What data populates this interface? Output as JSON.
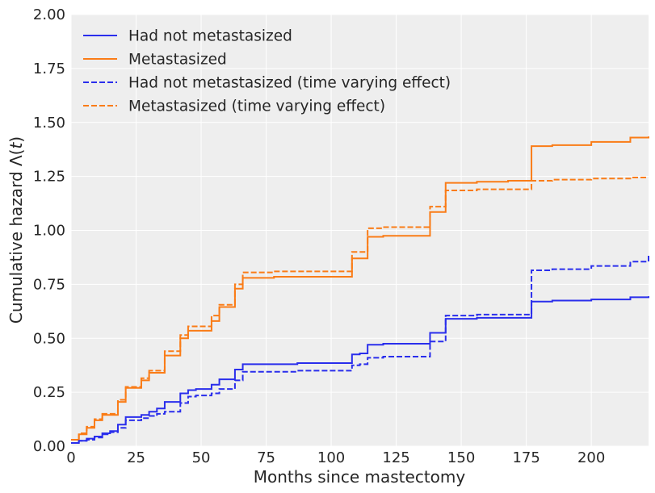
{
  "chart_data": {
    "type": "line",
    "title": "",
    "xlabel": "Months since mastectomy",
    "ylabel_main": "Cumulative hazard Λ(",
    "ylabel_var": "t",
    "ylabel_close": ")",
    "xlim": [
      0,
      222
    ],
    "ylim": [
      0,
      2.0
    ],
    "xticks": [
      0,
      25,
      50,
      75,
      100,
      125,
      150,
      175,
      200
    ],
    "xtick_labels": [
      "0",
      "25",
      "50",
      "75",
      "100",
      "125",
      "150",
      "175",
      "200"
    ],
    "yticks": [
      0,
      0.25,
      0.5,
      0.75,
      1.0,
      1.25,
      1.5,
      1.75,
      2.0
    ],
    "ytick_labels": [
      "0.00",
      "0.25",
      "0.50",
      "0.75",
      "1.00",
      "1.25",
      "1.50",
      "1.75",
      "2.00"
    ],
    "grid": true,
    "legend_position": "top-left",
    "series": [
      {
        "name": "Had not metastasized",
        "color": "#2a2eec",
        "dash": "solid",
        "points": [
          [
            0,
            0.015
          ],
          [
            3,
            0.025
          ],
          [
            6,
            0.035
          ],
          [
            9,
            0.045
          ],
          [
            12,
            0.06
          ],
          [
            15,
            0.07
          ],
          [
            18,
            0.1
          ],
          [
            21,
            0.135
          ],
          [
            27,
            0.145
          ],
          [
            30,
            0.16
          ],
          [
            33,
            0.175
          ],
          [
            36,
            0.205
          ],
          [
            42,
            0.245
          ],
          [
            45,
            0.26
          ],
          [
            48,
            0.265
          ],
          [
            54,
            0.285
          ],
          [
            57,
            0.31
          ],
          [
            63,
            0.355
          ],
          [
            66,
            0.38
          ],
          [
            78,
            0.38
          ],
          [
            87,
            0.385
          ],
          [
            108,
            0.425
          ],
          [
            111,
            0.43
          ],
          [
            114,
            0.47
          ],
          [
            120,
            0.475
          ],
          [
            138,
            0.525
          ],
          [
            144,
            0.59
          ],
          [
            156,
            0.595
          ],
          [
            177,
            0.6
          ],
          [
            177,
            0.67
          ],
          [
            185,
            0.675
          ],
          [
            200,
            0.68
          ],
          [
            215,
            0.69
          ],
          [
            222,
            0.695
          ]
        ]
      },
      {
        "name": "Metastasized",
        "color": "#fa7c17",
        "dash": "solid",
        "points": [
          [
            0,
            0.03
          ],
          [
            3,
            0.055
          ],
          [
            6,
            0.085
          ],
          [
            9,
            0.12
          ],
          [
            12,
            0.145
          ],
          [
            18,
            0.205
          ],
          [
            21,
            0.27
          ],
          [
            27,
            0.305
          ],
          [
            30,
            0.34
          ],
          [
            36,
            0.42
          ],
          [
            42,
            0.5
          ],
          [
            45,
            0.535
          ],
          [
            54,
            0.58
          ],
          [
            57,
            0.645
          ],
          [
            63,
            0.73
          ],
          [
            66,
            0.78
          ],
          [
            78,
            0.785
          ],
          [
            108,
            0.87
          ],
          [
            114,
            0.97
          ],
          [
            120,
            0.975
          ],
          [
            138,
            1.085
          ],
          [
            144,
            1.22
          ],
          [
            156,
            1.225
          ],
          [
            168,
            1.23
          ],
          [
            177,
            1.235
          ],
          [
            177,
            1.39
          ],
          [
            185,
            1.395
          ],
          [
            200,
            1.41
          ],
          [
            215,
            1.43
          ],
          [
            222,
            1.435
          ]
        ]
      },
      {
        "name": "Had not metastasized (time varying effect)",
        "color": "#2a2eec",
        "dash": "dashed",
        "points": [
          [
            0,
            0.015
          ],
          [
            3,
            0.025
          ],
          [
            6,
            0.03
          ],
          [
            9,
            0.04
          ],
          [
            12,
            0.055
          ],
          [
            15,
            0.065
          ],
          [
            18,
            0.085
          ],
          [
            21,
            0.12
          ],
          [
            27,
            0.13
          ],
          [
            30,
            0.14
          ],
          [
            33,
            0.15
          ],
          [
            36,
            0.16
          ],
          [
            42,
            0.2
          ],
          [
            45,
            0.23
          ],
          [
            48,
            0.235
          ],
          [
            54,
            0.245
          ],
          [
            57,
            0.265
          ],
          [
            63,
            0.305
          ],
          [
            66,
            0.345
          ],
          [
            78,
            0.345
          ],
          [
            87,
            0.35
          ],
          [
            108,
            0.375
          ],
          [
            111,
            0.38
          ],
          [
            114,
            0.41
          ],
          [
            120,
            0.415
          ],
          [
            138,
            0.485
          ],
          [
            144,
            0.605
          ],
          [
            156,
            0.61
          ],
          [
            177,
            0.62
          ],
          [
            177,
            0.815
          ],
          [
            185,
            0.82
          ],
          [
            200,
            0.835
          ],
          [
            215,
            0.855
          ],
          [
            222,
            0.885
          ]
        ]
      },
      {
        "name": "Metastasized (time varying effect)",
        "color": "#fa7c17",
        "dash": "dashed",
        "points": [
          [
            0,
            0.03
          ],
          [
            3,
            0.06
          ],
          [
            6,
            0.09
          ],
          [
            9,
            0.125
          ],
          [
            12,
            0.15
          ],
          [
            18,
            0.215
          ],
          [
            21,
            0.275
          ],
          [
            27,
            0.315
          ],
          [
            30,
            0.35
          ],
          [
            36,
            0.44
          ],
          [
            42,
            0.515
          ],
          [
            45,
            0.555
          ],
          [
            54,
            0.605
          ],
          [
            57,
            0.655
          ],
          [
            63,
            0.75
          ],
          [
            66,
            0.805
          ],
          [
            78,
            0.81
          ],
          [
            108,
            0.9
          ],
          [
            114,
            1.01
          ],
          [
            120,
            1.015
          ],
          [
            138,
            1.11
          ],
          [
            144,
            1.185
          ],
          [
            156,
            1.19
          ],
          [
            177,
            1.19
          ],
          [
            177,
            1.23
          ],
          [
            185,
            1.235
          ],
          [
            200,
            1.24
          ],
          [
            215,
            1.245
          ],
          [
            222,
            1.245
          ]
        ]
      }
    ]
  }
}
